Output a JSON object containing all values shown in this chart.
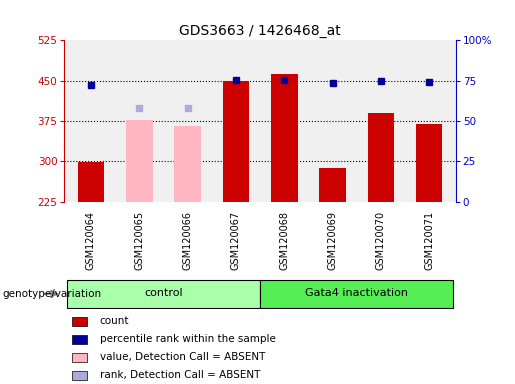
{
  "title": "GDS3663 / 1426468_at",
  "samples": [
    "GSM120064",
    "GSM120065",
    "GSM120066",
    "GSM120067",
    "GSM120068",
    "GSM120069",
    "GSM120070",
    "GSM120071"
  ],
  "groups": [
    {
      "label": "control",
      "samples": [
        0,
        1,
        2,
        3
      ],
      "color": "#aaffaa"
    },
    {
      "label": "Gata4 inactivation",
      "samples": [
        4,
        5,
        6,
        7
      ],
      "color": "#55ee55"
    }
  ],
  "bar_bottom": 225,
  "ylim": [
    225,
    525
  ],
  "yticks": [
    225,
    300,
    375,
    450,
    525
  ],
  "right_ylim": [
    0,
    100
  ],
  "right_yticks": [
    0,
    25,
    50,
    75,
    100
  ],
  "right_yticklabels": [
    "0",
    "25",
    "50",
    "75",
    "100%"
  ],
  "red_bars": [
    298,
    null,
    null,
    450,
    462,
    287,
    390,
    370
  ],
  "pink_bars": [
    null,
    377,
    365,
    null,
    null,
    null,
    null,
    null
  ],
  "blue_dots": [
    441,
    null,
    null,
    451,
    452,
    446,
    449,
    448
  ],
  "lavender_dots": [
    null,
    400,
    400,
    null,
    null,
    null,
    null,
    null
  ],
  "red_bar_color": "#cc0000",
  "pink_bar_color": "#ffb6c1",
  "blue_dot_color": "#000099",
  "lavender_dot_color": "#aaaadd",
  "left_axis_color": "#cc0000",
  "right_axis_color": "#0000cc",
  "bg_plot_color": "#f0f0f0",
  "bg_label_color": "#c8c8c8",
  "genotype_label": "genotype/variation",
  "legend_items": [
    {
      "label": "count",
      "color": "#cc0000"
    },
    {
      "label": "percentile rank within the sample",
      "color": "#000099"
    },
    {
      "label": "value, Detection Call = ABSENT",
      "color": "#ffb6c1"
    },
    {
      "label": "rank, Detection Call = ABSENT",
      "color": "#aaaadd"
    }
  ]
}
